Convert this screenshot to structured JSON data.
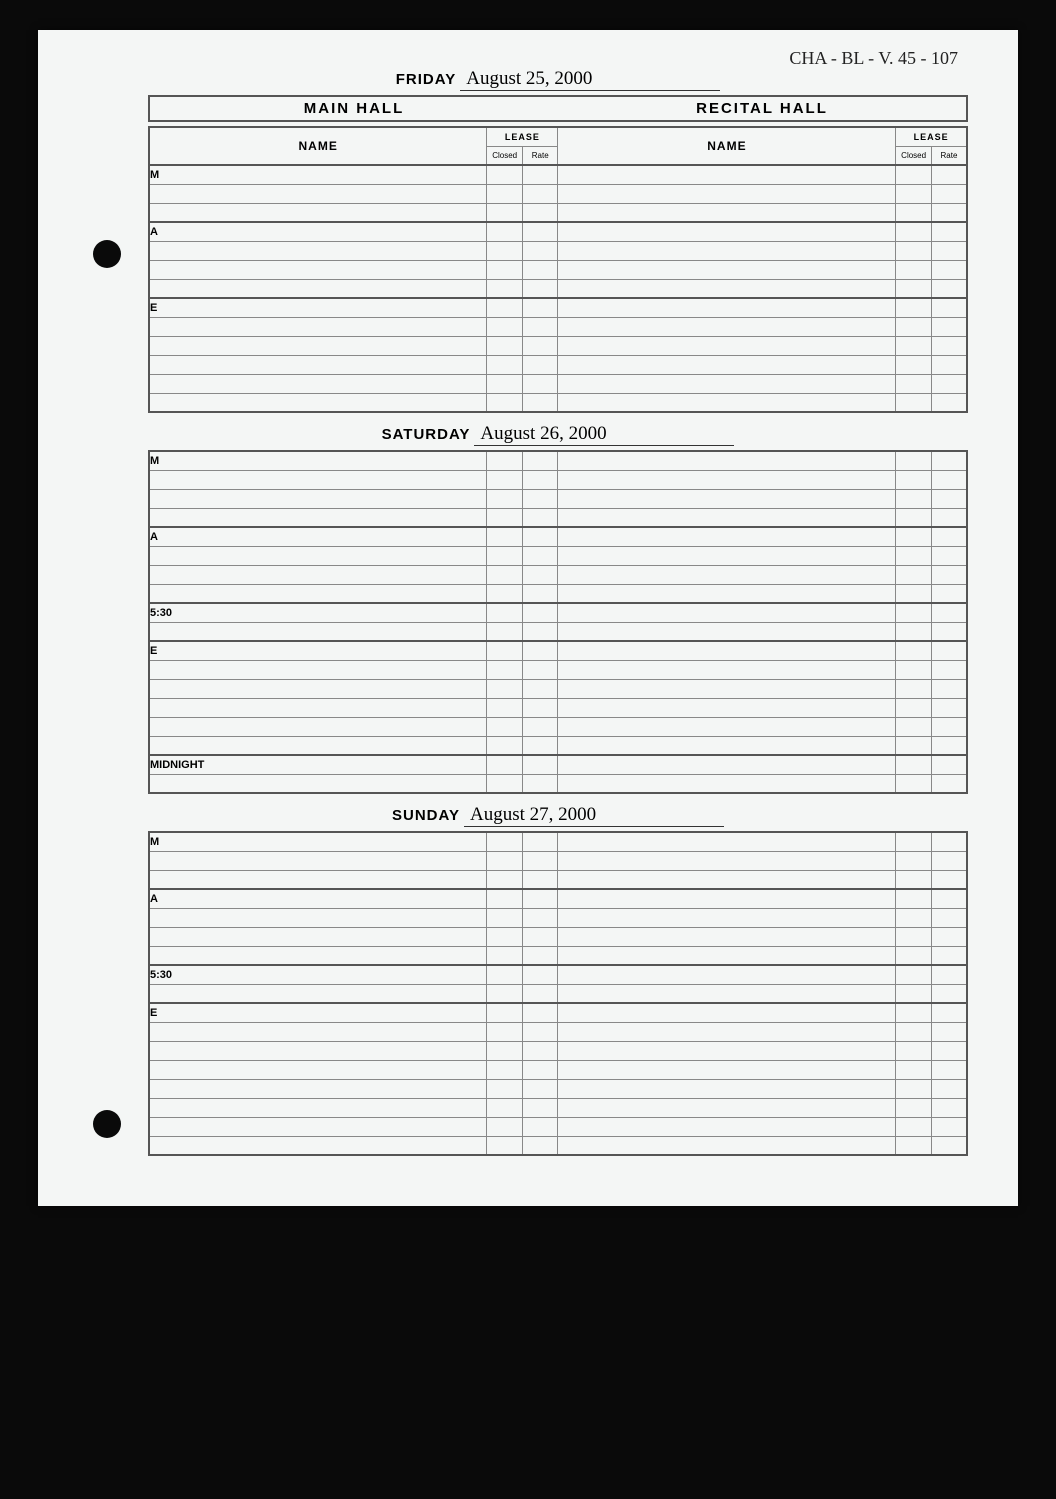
{
  "catalog_ref": "CHA - BL - V. 45 - 107",
  "hall_left": "MAIN HALL",
  "hall_right": "RECITAL HALL",
  "col_name": "NAME",
  "col_lease": "LEASE",
  "col_closed": "Closed",
  "col_rate": "Rate",
  "days": [
    {
      "printed": "FRIDAY",
      "written": "August 25, 2000",
      "show_halls_header": true,
      "show_col_header": true,
      "sections": [
        {
          "label": "M",
          "rows": 3
        },
        {
          "label": "A",
          "rows": 4
        },
        {
          "label": "E",
          "rows": 6
        }
      ]
    },
    {
      "printed": "SATURDAY",
      "written": "August 26, 2000",
      "show_halls_header": false,
      "show_col_header": false,
      "sections": [
        {
          "label": "M",
          "rows": 4
        },
        {
          "label": "A",
          "rows": 4
        },
        {
          "label": "5:30",
          "rows": 2
        },
        {
          "label": "E",
          "rows": 6
        },
        {
          "label": "MIDNIGHT",
          "rows": 2
        }
      ]
    },
    {
      "printed": "SUNDAY",
      "written": "August 27, 2000",
      "show_halls_header": false,
      "show_col_header": false,
      "sections": [
        {
          "label": "M",
          "rows": 3
        },
        {
          "label": "A",
          "rows": 4
        },
        {
          "label": "5:30",
          "rows": 2
        },
        {
          "label": "E",
          "rows": 8
        }
      ]
    }
  ]
}
